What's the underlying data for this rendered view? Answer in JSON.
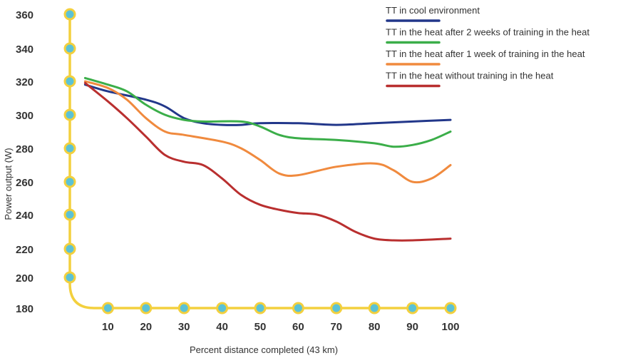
{
  "chart_data": {
    "type": "line",
    "xlabel": "Percent distance completed (43 km)",
    "ylabel": "Power output (W)",
    "xlim": [
      0,
      100
    ],
    "ylim": [
      180,
      360
    ],
    "x_ticks": [
      10,
      20,
      30,
      40,
      50,
      60,
      70,
      80,
      90,
      100
    ],
    "y_ticks": [
      180,
      200,
      220,
      240,
      260,
      280,
      300,
      320,
      340,
      360
    ],
    "grid": false,
    "legend_position": "top-right",
    "colors": {
      "axis": "#F3D03E",
      "marker_fill": "#5BC2D6",
      "tick_text": "#333333"
    },
    "series": [
      {
        "name": "TT in cool environment",
        "color": "#22378A",
        "points": [
          [
            4,
            318
          ],
          [
            10,
            314
          ],
          [
            20,
            309
          ],
          [
            25,
            305
          ],
          [
            30,
            298
          ],
          [
            35,
            295
          ],
          [
            40,
            294
          ],
          [
            45,
            294
          ],
          [
            50,
            295
          ],
          [
            60,
            295
          ],
          [
            70,
            294
          ],
          [
            80,
            295
          ],
          [
            90,
            296
          ],
          [
            100,
            297
          ]
        ]
      },
      {
        "name": "TT in the heat after 2 weeks of training in the heat",
        "color": "#3BAE49",
        "points": [
          [
            4,
            322
          ],
          [
            10,
            318
          ],
          [
            15,
            314
          ],
          [
            20,
            306
          ],
          [
            25,
            300
          ],
          [
            30,
            297
          ],
          [
            35,
            296
          ],
          [
            45,
            296
          ],
          [
            50,
            293
          ],
          [
            55,
            288
          ],
          [
            60,
            286
          ],
          [
            70,
            285
          ],
          [
            80,
            283
          ],
          [
            85,
            281
          ],
          [
            90,
            282
          ],
          [
            95,
            285
          ],
          [
            100,
            290
          ]
        ]
      },
      {
        "name": "TT in the heat after 1 week of training in the heat",
        "color": "#F08A3E",
        "points": [
          [
            4,
            320
          ],
          [
            10,
            316
          ],
          [
            15,
            309
          ],
          [
            20,
            298
          ],
          [
            25,
            290
          ],
          [
            30,
            288
          ],
          [
            40,
            284
          ],
          [
            45,
            280
          ],
          [
            50,
            273
          ],
          [
            55,
            265
          ],
          [
            60,
            264
          ],
          [
            70,
            269
          ],
          [
            80,
            271
          ],
          [
            85,
            267
          ],
          [
            90,
            260
          ],
          [
            95,
            262
          ],
          [
            100,
            270
          ]
        ]
      },
      {
        "name": "TT in the heat without training in the heat",
        "color": "#B92F2F",
        "points": [
          [
            4,
            319
          ],
          [
            10,
            308
          ],
          [
            15,
            298
          ],
          [
            20,
            287
          ],
          [
            25,
            276
          ],
          [
            30,
            272
          ],
          [
            35,
            270
          ],
          [
            40,
            262
          ],
          [
            45,
            252
          ],
          [
            50,
            246
          ],
          [
            55,
            243
          ],
          [
            60,
            241
          ],
          [
            65,
            240
          ],
          [
            70,
            236
          ],
          [
            75,
            230
          ],
          [
            80,
            226
          ],
          [
            85,
            225
          ],
          [
            90,
            225
          ],
          [
            100,
            226
          ]
        ]
      }
    ]
  }
}
